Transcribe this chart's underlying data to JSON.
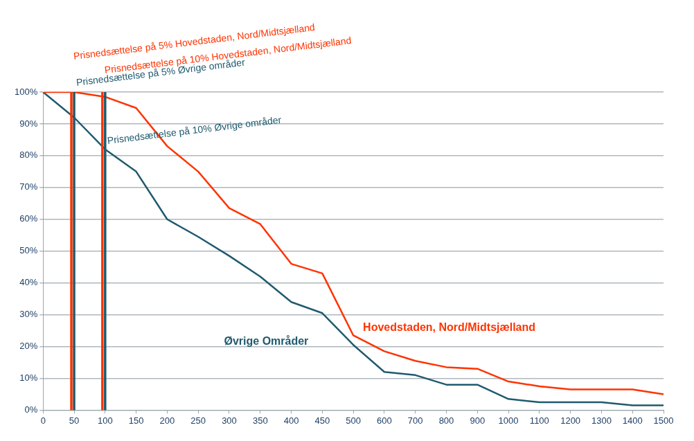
{
  "chart_data": {
    "type": "line",
    "categories": [
      "0",
      "50",
      "100",
      "150",
      "200",
      "250",
      "300",
      "350",
      "400",
      "450",
      "500",
      "600",
      "700",
      "800",
      "900",
      "1000",
      "1100",
      "1200",
      "1300",
      "1400",
      "1500"
    ],
    "series": [
      {
        "name": "Hovedstaden, Nord/Midtsjælland",
        "color": "#ff3300",
        "values": [
          100,
          100,
          98.5,
          95,
          83,
          75,
          63.5,
          58.5,
          46,
          43,
          23.5,
          18.5,
          15.5,
          13.5,
          13,
          9,
          7.5,
          6.5,
          6.5,
          6.5,
          5
        ]
      },
      {
        "name": "Øvrige Områder",
        "color": "#1f5a6e",
        "values": [
          100,
          92,
          82,
          75,
          60,
          54.5,
          48.5,
          42,
          34,
          30.5,
          20.5,
          12,
          11,
          8,
          8,
          3.5,
          2.5,
          2.5,
          2.5,
          1.5,
          1.5
        ]
      }
    ],
    "ylim": [
      0,
      100
    ],
    "yticks": [
      {
        "value": 0,
        "label": "0%"
      },
      {
        "value": 10,
        "label": "10%"
      },
      {
        "value": 20,
        "label": "20%"
      },
      {
        "value": 30,
        "label": "30%"
      },
      {
        "value": 40,
        "label": "40%"
      },
      {
        "value": 50,
        "label": "50%"
      },
      {
        "value": 60,
        "label": "60%"
      },
      {
        "value": 70,
        "label": "70%"
      },
      {
        "value": 80,
        "label": "80%"
      },
      {
        "value": 90,
        "label": "90%"
      },
      {
        "value": 100,
        "label": "100%"
      }
    ],
    "ref_lines": [
      {
        "axis": "x",
        "value": "50",
        "label": "Prisnedsættelse på 5% Hovedstaden, Nord/Midtsjælland",
        "color": "#ff3300"
      },
      {
        "axis": "x",
        "value": "100",
        "label": "Prisnedsættelse på 10% Hovedstaden, Nord/Midtsjælland",
        "color": "#ff3300"
      },
      {
        "axis": "x",
        "value": "50",
        "label": "Prisnedsættelse på 5% Øvrige områder",
        "color": "#1f5a6e"
      },
      {
        "axis": "x",
        "value": "100",
        "label": "Prisnedsættelse på 10% Øvrige områder",
        "color": "#1f5a6e"
      }
    ],
    "grid": "y",
    "legend": false,
    "marker": "none",
    "line_style": "solid"
  }
}
